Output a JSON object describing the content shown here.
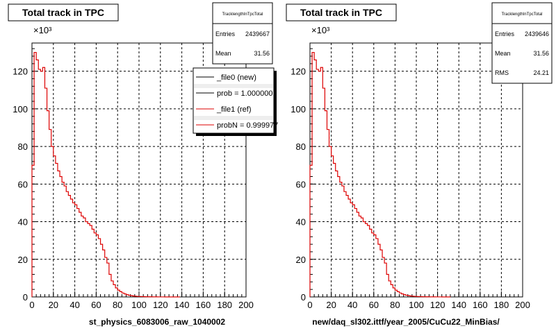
{
  "colors": {
    "background": "#ffffff",
    "axis": "#000000",
    "grid": "#000000",
    "new_line": "#000000",
    "ref_line": "#dd0000"
  },
  "chart_data": [
    {
      "type": "line",
      "title": "Total track in TPC",
      "xlabel": "st_physics_6083006_raw_1040002",
      "ylabel": "",
      "y_multiplier": "×10³",
      "xlim": [
        0,
        200
      ],
      "ylim": [
        0,
        135
      ],
      "x_ticks": [
        "0",
        "20",
        "40",
        "60",
        "80",
        "100",
        "120",
        "140",
        "160",
        "180",
        "200"
      ],
      "y_ticks": [
        "0",
        "20",
        "40",
        "60",
        "80",
        "100",
        "120"
      ],
      "grid": true,
      "stats": {
        "name": "TracklengthInTpcTotal",
        "rows": [
          {
            "label": "Entries",
            "value": "2439667"
          },
          {
            "label": "Mean",
            "value": "31.56"
          }
        ]
      },
      "legend": {
        "placement": "top-right",
        "entries": [
          {
            "label": "_file0 (new)",
            "color": "#000000"
          },
          {
            "label": "prob = 1.000000",
            "color": "#000000"
          },
          {
            "label": "_file1 (ref)",
            "color": "#dd0000"
          },
          {
            "label": "probN = 0.999977",
            "color": "#dd0000"
          }
        ]
      },
      "series": [
        {
          "bin_width": 2,
          "x": [
            0,
            2,
            4,
            6,
            8,
            10,
            12,
            14,
            16,
            18,
            20,
            22,
            24,
            26,
            28,
            30,
            32,
            34,
            36,
            38,
            40,
            42,
            44,
            46,
            48,
            50,
            52,
            54,
            56,
            58,
            60,
            62,
            64,
            66,
            68,
            70,
            72,
            74,
            76,
            78,
            80,
            82,
            84,
            86,
            88,
            90,
            92,
            94,
            96,
            98,
            100,
            102,
            104,
            106,
            108,
            110,
            112,
            114,
            116,
            118,
            120,
            122,
            124,
            126,
            128,
            130,
            132,
            134,
            136
          ],
          "values": [
            70,
            130,
            126,
            121,
            120,
            122,
            111,
            99,
            89,
            80,
            75,
            71,
            67,
            64,
            61,
            59,
            56,
            54,
            52,
            50,
            49,
            47,
            45,
            43,
            42,
            40,
            39,
            38,
            36,
            34,
            33,
            31,
            28,
            25,
            21,
            18,
            12,
            8.5,
            6.5,
            4.8,
            3.6,
            2.8,
            2.1,
            1.6,
            1.2,
            0.9,
            0.7,
            0.5,
            0.4,
            0.3,
            0.25,
            0.2,
            0.15,
            0.12,
            0.1,
            0.08,
            0.06,
            0.05,
            0.04,
            0.03,
            0.02,
            0.02,
            0.01,
            0.01,
            0.01,
            0.01,
            0.01,
            0.01,
            0.01
          ]
        }
      ]
    },
    {
      "type": "line",
      "title": "Total track in TPC",
      "xlabel": "new/daq_sl302.ittf/year_2005/CuCu22_MinBias/",
      "ylabel": "",
      "y_multiplier": "×10³",
      "xlim": [
        0,
        200
      ],
      "ylim": [
        0,
        135
      ],
      "x_ticks": [
        "0",
        "20",
        "40",
        "60",
        "80",
        "100",
        "120",
        "140",
        "160",
        "180",
        "200"
      ],
      "y_ticks": [
        "0",
        "20",
        "40",
        "60",
        "80",
        "100",
        "120"
      ],
      "grid": true,
      "stats": {
        "name": "TracklengthInTpcTotal",
        "rows": [
          {
            "label": "Entries",
            "value": "2439646"
          },
          {
            "label": "Mean",
            "value": "31.56"
          },
          {
            "label": "RMS",
            "value": "24.21"
          }
        ]
      },
      "series": [
        {
          "bin_width": 2,
          "x": [
            0,
            2,
            4,
            6,
            8,
            10,
            12,
            14,
            16,
            18,
            20,
            22,
            24,
            26,
            28,
            30,
            32,
            34,
            36,
            38,
            40,
            42,
            44,
            46,
            48,
            50,
            52,
            54,
            56,
            58,
            60,
            62,
            64,
            66,
            68,
            70,
            72,
            74,
            76,
            78,
            80,
            82,
            84,
            86,
            88,
            90,
            92,
            94,
            96,
            98,
            100,
            102,
            104,
            106,
            108,
            110,
            112,
            114,
            116,
            118,
            120,
            122,
            124,
            126,
            128,
            130
          ],
          "values": [
            70,
            130,
            126,
            121,
            120,
            122,
            111,
            99,
            89,
            80,
            75,
            71,
            67,
            64,
            61,
            59,
            56,
            54,
            52,
            50,
            49,
            47,
            45,
            43,
            42,
            40,
            39,
            38,
            36,
            34,
            33,
            31,
            28,
            25,
            21,
            18,
            12,
            8.5,
            6.5,
            4.8,
            3.6,
            2.8,
            2.1,
            1.6,
            1.2,
            0.9,
            0.7,
            0.5,
            0.4,
            0.3,
            0.25,
            0.2,
            0.15,
            0.12,
            0.1,
            0.08,
            0.06,
            0.05,
            0.04,
            0.03,
            0.02,
            0.02,
            0.01,
            0.01,
            0.01,
            0.01
          ]
        }
      ]
    }
  ],
  "footer": {
    "note": ""
  }
}
